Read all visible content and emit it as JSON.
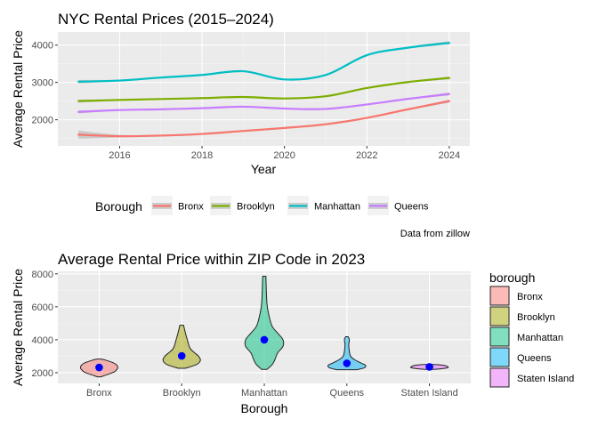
{
  "chart_data": [
    {
      "type": "line",
      "title": "NYC Rental Prices (2015–2024)",
      "xlabel": "Year",
      "ylabel": "Average Rental Price",
      "xlim": [
        2014.5,
        2024.5
      ],
      "ylim": [
        1300,
        4350
      ],
      "xticks": [
        2016,
        2018,
        2020,
        2022,
        2024
      ],
      "yticks": [
        2000,
        3000,
        4000
      ],
      "grid": true,
      "smoothed_with_confidence_band": true,
      "legend": {
        "title": "Borough",
        "position": "bottom",
        "entries": [
          "Bronx",
          "Brooklyn",
          "Manhattan",
          "Queens"
        ]
      },
      "caption": "Data from zillow",
      "x": [
        2015,
        2016,
        2017,
        2018,
        2019,
        2020,
        2021,
        2022,
        2023,
        2024
      ],
      "series": [
        {
          "name": "Bronx",
          "color": "#F8766D",
          "values": [
            1600,
            1560,
            1575,
            1620,
            1700,
            1780,
            1880,
            2050,
            2280,
            2500
          ],
          "band": [
            110,
            35,
            25,
            25,
            25,
            25,
            25,
            25,
            25,
            40
          ]
        },
        {
          "name": "Brooklyn",
          "color": "#7CAE00",
          "values": [
            2500,
            2530,
            2555,
            2580,
            2610,
            2570,
            2630,
            2850,
            3010,
            3120
          ],
          "band": [
            40,
            20,
            18,
            18,
            18,
            18,
            18,
            18,
            20,
            40
          ]
        },
        {
          "name": "Manhattan",
          "color": "#00BFC4",
          "values": [
            3020,
            3050,
            3130,
            3200,
            3300,
            3080,
            3200,
            3730,
            3930,
            4060
          ],
          "band": [
            45,
            25,
            22,
            22,
            25,
            22,
            22,
            25,
            25,
            45
          ]
        },
        {
          "name": "Queens",
          "color": "#C77CFF",
          "values": [
            2210,
            2260,
            2280,
            2310,
            2350,
            2300,
            2290,
            2410,
            2560,
            2690
          ],
          "band": [
            40,
            18,
            15,
            15,
            15,
            15,
            15,
            15,
            18,
            40
          ]
        }
      ]
    },
    {
      "type": "violin",
      "title": "Average Rental Price within ZIP Code in 2023",
      "xlabel": "Borough",
      "ylabel": "Average Rental Price",
      "ylim": [
        1350,
        8150
      ],
      "yticks": [
        2000,
        4000,
        6000,
        8000
      ],
      "grid": true,
      "legend": {
        "title": "borough",
        "position": "right",
        "entries": [
          "Bronx",
          "Brooklyn",
          "Manhattan",
          "Queens",
          "Staten Island"
        ]
      },
      "mean_marker_color": "#0000FF",
      "categories": [
        "Bronx",
        "Brooklyn",
        "Manhattan",
        "Queens",
        "Staten Island"
      ],
      "violins": [
        {
          "name": "Bronx",
          "color": "#F8766D",
          "mean": 2320,
          "min": 1750,
          "max": 2830,
          "profile": [
            [
              1750,
              2
            ],
            [
              1900,
              10
            ],
            [
              2050,
              17
            ],
            [
              2200,
              20
            ],
            [
              2300,
              21
            ],
            [
              2450,
              20
            ],
            [
              2600,
              16
            ],
            [
              2750,
              8
            ],
            [
              2830,
              2
            ]
          ]
        },
        {
          "name": "Brooklyn",
          "color": "#A3A500",
          "mean": 3020,
          "min": 2270,
          "max": 4880,
          "profile": [
            [
              2270,
              2
            ],
            [
              2500,
              8
            ],
            [
              2750,
              10
            ],
            [
              3000,
              9
            ],
            [
              3200,
              7
            ],
            [
              3400,
              5
            ],
            [
              3600,
              4
            ],
            [
              4000,
              3
            ],
            [
              4400,
              2
            ],
            [
              4880,
              1
            ]
          ]
        },
        {
          "name": "Manhattan",
          "color": "#00BF7D",
          "mean": 4000,
          "min": 2200,
          "max": 7850,
          "profile": [
            [
              2200,
              1
            ],
            [
              2500,
              3
            ],
            [
              2800,
              4
            ],
            [
              3200,
              5
            ],
            [
              3600,
              7
            ],
            [
              4000,
              7
            ],
            [
              4400,
              5
            ],
            [
              4800,
              3
            ],
            [
              5300,
              2
            ],
            [
              6200,
              1
            ],
            [
              7850,
              0.6
            ]
          ]
        },
        {
          "name": "Queens",
          "color": "#00B0F6",
          "mean": 2570,
          "min": 2180,
          "max": 4180,
          "profile": [
            [
              2180,
              8
            ],
            [
              2300,
              14
            ],
            [
              2450,
              15
            ],
            [
              2600,
              11
            ],
            [
              2800,
              6
            ],
            [
              3000,
              3
            ],
            [
              3300,
              2
            ],
            [
              3700,
              1.5
            ],
            [
              4000,
              2
            ],
            [
              4180,
              1
            ]
          ]
        },
        {
          "name": "Staten Island",
          "color": "#E76BF3",
          "mean": 2350,
          "min": 2200,
          "max": 2500,
          "profile": [
            [
              2200,
              10
            ],
            [
              2260,
              30
            ],
            [
              2320,
              38
            ],
            [
              2380,
              36
            ],
            [
              2440,
              30
            ],
            [
              2500,
              12
            ]
          ]
        }
      ]
    }
  ]
}
